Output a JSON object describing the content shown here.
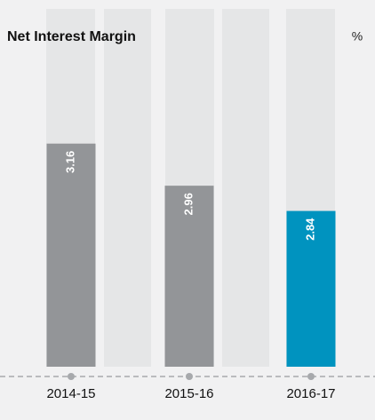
{
  "chart_data": {
    "type": "bar",
    "title": "Net Interest Margin",
    "unit_label": "%",
    "categories": [
      "2014-15",
      "2015-16",
      "2016-17"
    ],
    "values": [
      3.16,
      2.96,
      2.84
    ],
    "colors": [
      "#939598",
      "#939598",
      "#0093bf"
    ],
    "ylim": [
      2.1,
      3.8
    ]
  }
}
